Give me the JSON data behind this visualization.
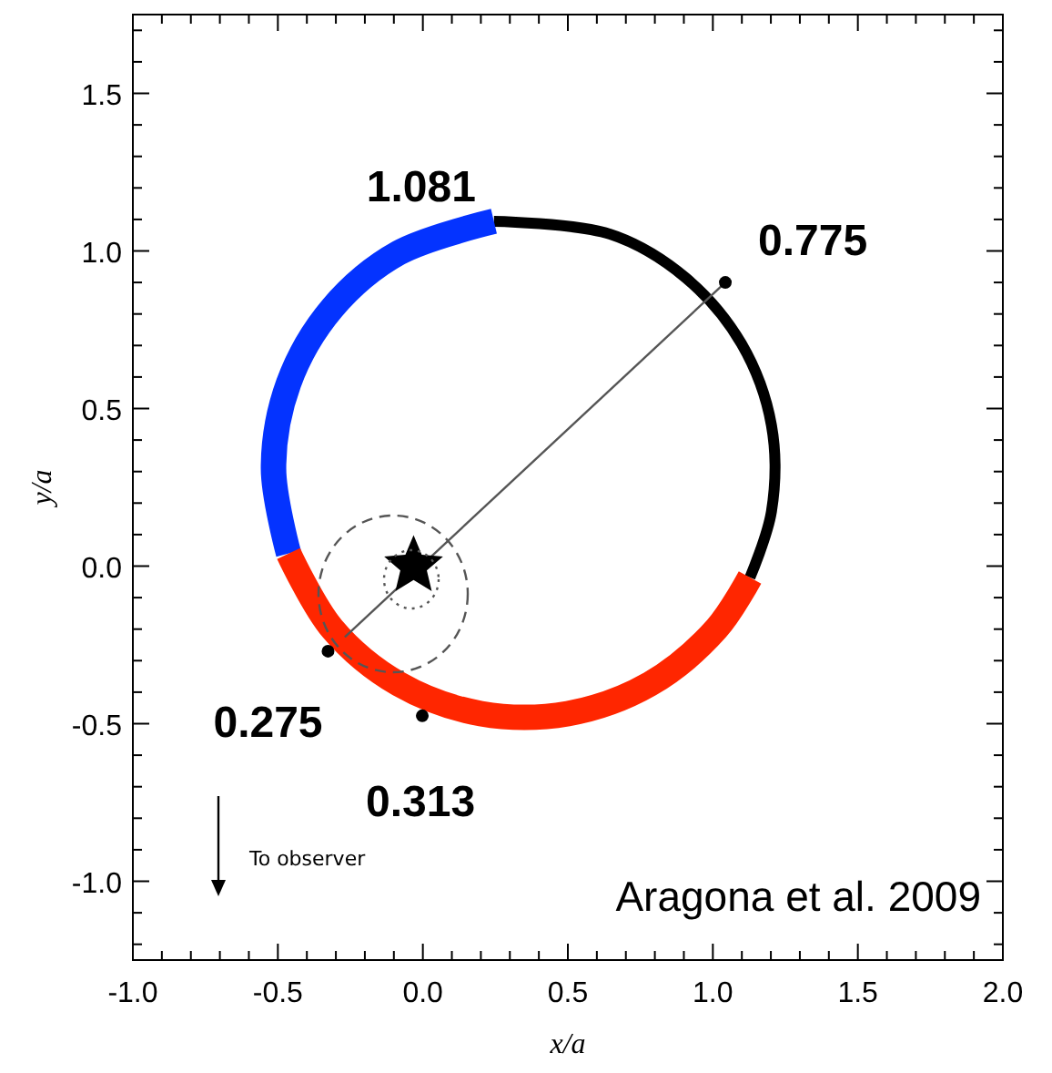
{
  "chart_data": {
    "type": "line",
    "xlabel": "x/a",
    "ylabel": "y/a",
    "xlim": [
      -1,
      2
    ],
    "ylim": [
      -1.25,
      1.75
    ],
    "xticks": [
      {
        "value": -1,
        "label": "-1.0"
      },
      {
        "value": -0.9,
        "label": null
      },
      {
        "value": -0.8,
        "label": null
      },
      {
        "value": -0.7,
        "label": null
      },
      {
        "value": -0.6,
        "label": null
      },
      {
        "value": -0.5,
        "label": "-0.5"
      },
      {
        "value": -0.4,
        "label": null
      },
      {
        "value": -0.3,
        "label": null
      },
      {
        "value": -0.2,
        "label": null
      },
      {
        "value": -0.1,
        "label": null
      },
      {
        "value": 0,
        "label": "0.0"
      },
      {
        "value": 0.1,
        "label": null
      },
      {
        "value": 0.2,
        "label": null
      },
      {
        "value": 0.3,
        "label": null
      },
      {
        "value": 0.4,
        "label": null
      },
      {
        "value": 0.5,
        "label": "0.5"
      },
      {
        "value": 0.6,
        "label": null
      },
      {
        "value": 0.7,
        "label": null
      },
      {
        "value": 0.8,
        "label": null
      },
      {
        "value": 0.9,
        "label": null
      },
      {
        "value": 1,
        "label": "1.0"
      },
      {
        "value": 1.1,
        "label": null
      },
      {
        "value": 1.2,
        "label": null
      },
      {
        "value": 1.3,
        "label": null
      },
      {
        "value": 1.4,
        "label": null
      },
      {
        "value": 1.5,
        "label": "1.5"
      },
      {
        "value": 1.6,
        "label": null
      },
      {
        "value": 1.7,
        "label": null
      },
      {
        "value": 1.8,
        "label": null
      },
      {
        "value": 1.9,
        "label": null
      },
      {
        "value": 2,
        "label": "2.0"
      }
    ],
    "yticks": [
      {
        "value": -1.2,
        "label": null
      },
      {
        "value": -1.1,
        "label": null
      },
      {
        "value": -1,
        "label": "-1.0"
      },
      {
        "value": -0.9,
        "label": null
      },
      {
        "value": -0.8,
        "label": null
      },
      {
        "value": -0.7,
        "label": null
      },
      {
        "value": -0.6,
        "label": null
      },
      {
        "value": -0.5,
        "label": "-0.5"
      },
      {
        "value": -0.4,
        "label": null
      },
      {
        "value": -0.3,
        "label": null
      },
      {
        "value": -0.2,
        "label": null
      },
      {
        "value": -0.1,
        "label": null
      },
      {
        "value": 0,
        "label": "0.0"
      },
      {
        "value": 0.1,
        "label": null
      },
      {
        "value": 0.2,
        "label": null
      },
      {
        "value": 0.3,
        "label": null
      },
      {
        "value": 0.4,
        "label": null
      },
      {
        "value": 0.5,
        "label": "0.5"
      },
      {
        "value": 0.6,
        "label": null
      },
      {
        "value": 0.7,
        "label": null
      },
      {
        "value": 0.8,
        "label": null
      },
      {
        "value": 0.9,
        "label": null
      },
      {
        "value": 1,
        "label": "1.0"
      },
      {
        "value": 1.1,
        "label": null
      },
      {
        "value": 1.2,
        "label": null
      },
      {
        "value": 1.3,
        "label": null
      },
      {
        "value": 1.4,
        "label": null
      },
      {
        "value": 1.5,
        "label": "1.5"
      },
      {
        "value": 1.6,
        "label": null
      },
      {
        "value": 1.7,
        "label": null
      }
    ],
    "grid": false,
    "series": [
      {
        "color": "#000000",
        "x": [
          1.128,
          1.202,
          1.202,
          1.099,
          0.906,
          0.646,
          0.245
        ],
        "values": [
          -0.036,
          0.173,
          0.447,
          0.705,
          0.915,
          1.053,
          1.094
        ]
      },
      {
        "color": "#0433ff",
        "x": [
          0.245,
          -0.083,
          -0.313,
          -0.463,
          -0.515,
          -0.463
        ],
        "values": [
          1.094,
          0.994,
          0.818,
          0.58,
          0.31,
          0.04
        ]
      },
      {
        "color": "#ff2600",
        "x": [
          -0.463,
          -0.313,
          -0.083,
          0.2,
          0.5,
          0.783,
          1.013,
          1.128
        ],
        "values": [
          0.04,
          -0.198,
          -0.374,
          -0.468,
          -0.468,
          -0.374,
          -0.198,
          -0.036
        ]
      },
      {
        "color": "#555555",
        "line_style": "solid",
        "x": [
          1.043,
          -0.269
        ],
        "values": [
          0.9,
          -0.225
        ]
      },
      {
        "type": "scatter",
        "marker": "circle",
        "color": "#000000",
        "x": [
          1.043,
          -0.002,
          -0.327
        ],
        "values": [
          0.9,
          -0.475,
          -0.27
        ]
      },
      {
        "type": "scatter",
        "marker": "star",
        "color": "#000000",
        "x": [
          -0.032
        ],
        "values": [
          0
        ]
      }
    ],
    "annotations": [
      {
        "text": "1.081",
        "x": 0.245,
        "y": 1.094
      },
      {
        "text": "0.775",
        "x": 1.043,
        "y": 0.9
      },
      {
        "text": "0.275",
        "x": -0.327,
        "y": -0.27
      },
      {
        "text": "0.313",
        "x": -0.002,
        "y": -0.475
      },
      "To observer",
      "Aragona et al. 2009"
    ]
  }
}
